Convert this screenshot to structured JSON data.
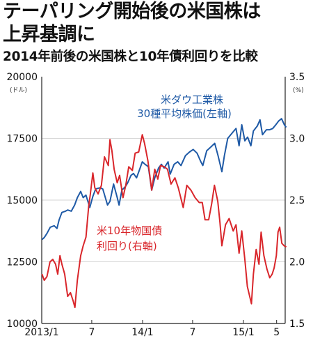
{
  "headline": {
    "line1": "テーパリング開始後の米国株は",
    "line2": "上昇基調に"
  },
  "subtitle": "2014年前後の米国株と10年債利回りを比較",
  "colors": {
    "stock": "#1f5aa6",
    "yield": "#d9262b",
    "axis": "#222222",
    "grid": "#c9c9c9"
  },
  "chart_data": {
    "type": "line",
    "title": "2014年前後の米国株と10年債利回りを比較",
    "x_range": [
      "2013-01",
      "2015-06"
    ],
    "x_ticks": [
      {
        "label": "2013/1",
        "date": "2013-01"
      },
      {
        "label": "7",
        "date": "2013-07"
      },
      {
        "label": "14/1",
        "date": "2014-01"
      },
      {
        "label": "7",
        "date": "2014-07"
      },
      {
        "label": "15/1",
        "date": "2015-01"
      },
      {
        "label": "5",
        "date": "2015-05"
      }
    ],
    "left_axis": {
      "unit": "(ドル)",
      "range": [
        10000,
        20000
      ],
      "ticks": [
        "10000",
        "12500",
        "15000",
        "17500",
        "20000"
      ]
    },
    "right_axis": {
      "unit": "(%)",
      "range": [
        1.5,
        3.5
      ],
      "ticks": [
        "1.5",
        "2.0",
        "2.5",
        "3.0",
        "3.5"
      ]
    },
    "grid": "horizontal",
    "series": [
      {
        "name": "米ダウ工業株 30種平均株価(左軸)",
        "label_line1": "米ダウ工業株",
        "label_line2": "30種平均株価(左軸)",
        "axis": "left",
        "points": [
          [
            "2013-01-02",
            13400
          ],
          [
            "2013-01-10",
            13480
          ],
          [
            "2013-01-20",
            13650
          ],
          [
            "2013-02-01",
            13900
          ],
          [
            "2013-02-15",
            13960
          ],
          [
            "2013-02-25",
            13850
          ],
          [
            "2013-03-05",
            14200
          ],
          [
            "2013-03-15",
            14500
          ],
          [
            "2013-03-28",
            14550
          ],
          [
            "2013-04-05",
            14600
          ],
          [
            "2013-04-18",
            14550
          ],
          [
            "2013-04-30",
            14800
          ],
          [
            "2013-05-10",
            15100
          ],
          [
            "2013-05-22",
            15350
          ],
          [
            "2013-05-31",
            15100
          ],
          [
            "2013-06-10",
            15200
          ],
          [
            "2013-06-24",
            14700
          ],
          [
            "2013-07-05",
            15150
          ],
          [
            "2013-07-15",
            15450
          ],
          [
            "2013-07-31",
            15500
          ],
          [
            "2013-08-10",
            15450
          ],
          [
            "2013-08-27",
            14800
          ],
          [
            "2013-09-05",
            14950
          ],
          [
            "2013-09-18",
            15650
          ],
          [
            "2013-09-30",
            15150
          ],
          [
            "2013-10-08",
            14800
          ],
          [
            "2013-10-18",
            15400
          ],
          [
            "2013-10-31",
            15550
          ],
          [
            "2013-11-08",
            15700
          ],
          [
            "2013-11-20",
            16000
          ],
          [
            "2013-11-29",
            16080
          ],
          [
            "2013-12-10",
            15900
          ],
          [
            "2013-12-20",
            16200
          ],
          [
            "2013-12-31",
            16550
          ],
          [
            "2014-01-10",
            16450
          ],
          [
            "2014-01-22",
            16350
          ],
          [
            "2014-02-03",
            15400
          ],
          [
            "2014-02-14",
            15900
          ],
          [
            "2014-02-28",
            16300
          ],
          [
            "2014-03-10",
            16450
          ],
          [
            "2014-03-20",
            16300
          ],
          [
            "2014-04-03",
            16550
          ],
          [
            "2014-04-11",
            16050
          ],
          [
            "2014-04-25",
            16450
          ],
          [
            "2014-05-08",
            16550
          ],
          [
            "2014-05-20",
            16400
          ],
          [
            "2014-06-05",
            16800
          ],
          [
            "2014-06-20",
            16950
          ],
          [
            "2014-07-03",
            17050
          ],
          [
            "2014-07-17",
            16900
          ],
          [
            "2014-07-31",
            16550
          ],
          [
            "2014-08-07",
            16400
          ],
          [
            "2014-08-21",
            17000
          ],
          [
            "2014-09-05",
            17150
          ],
          [
            "2014-09-19",
            17300
          ],
          [
            "2014-10-01",
            16800
          ],
          [
            "2014-10-15",
            16150
          ],
          [
            "2014-10-24",
            16800
          ],
          [
            "2014-11-05",
            17500
          ],
          [
            "2014-11-20",
            17700
          ],
          [
            "2014-12-05",
            17900
          ],
          [
            "2014-12-16",
            17200
          ],
          [
            "2014-12-26",
            18050
          ],
          [
            "2015-01-06",
            17400
          ],
          [
            "2015-01-16",
            17550
          ],
          [
            "2015-01-28",
            17200
          ],
          [
            "2015-02-06",
            17800
          ],
          [
            "2015-02-20",
            18000
          ],
          [
            "2015-03-02",
            18250
          ],
          [
            "2015-03-11",
            17650
          ],
          [
            "2015-03-25",
            17850
          ],
          [
            "2015-04-06",
            17850
          ],
          [
            "2015-04-17",
            17900
          ],
          [
            "2015-04-28",
            18050
          ],
          [
            "2015-05-08",
            18200
          ],
          [
            "2015-05-19",
            18300
          ],
          [
            "2015-05-29",
            18050
          ],
          [
            "2015-06-05",
            17950
          ]
        ]
      },
      {
        "name": "米10年物国債 利回り(右軸)",
        "label_line1": "米10年物国債",
        "label_line2": "利回り(右軸)",
        "axis": "right",
        "points": [
          [
            "2013-01-02",
            1.9
          ],
          [
            "2013-01-10",
            1.85
          ],
          [
            "2013-01-20",
            1.88
          ],
          [
            "2013-01-31",
            2.0
          ],
          [
            "2013-02-10",
            2.02
          ],
          [
            "2013-02-20",
            1.98
          ],
          [
            "2013-02-28",
            1.9
          ],
          [
            "2013-03-08",
            2.05
          ],
          [
            "2013-03-15",
            1.98
          ],
          [
            "2013-03-25",
            1.9
          ],
          [
            "2013-04-05",
            1.72
          ],
          [
            "2013-04-15",
            1.75
          ],
          [
            "2013-04-25",
            1.68
          ],
          [
            "2013-05-01",
            1.63
          ],
          [
            "2013-05-10",
            1.85
          ],
          [
            "2013-05-22",
            2.05
          ],
          [
            "2013-05-31",
            2.13
          ],
          [
            "2013-06-10",
            2.2
          ],
          [
            "2013-06-20",
            2.45
          ],
          [
            "2013-06-26",
            2.55
          ],
          [
            "2013-07-05",
            2.72
          ],
          [
            "2013-07-12",
            2.6
          ],
          [
            "2013-07-24",
            2.55
          ],
          [
            "2013-08-05",
            2.62
          ],
          [
            "2013-08-16",
            2.85
          ],
          [
            "2013-08-30",
            2.78
          ],
          [
            "2013-09-05",
            2.99
          ],
          [
            "2013-09-12",
            2.9
          ],
          [
            "2013-09-20",
            2.75
          ],
          [
            "2013-10-01",
            2.64
          ],
          [
            "2013-10-10",
            2.7
          ],
          [
            "2013-10-22",
            2.52
          ],
          [
            "2013-11-01",
            2.62
          ],
          [
            "2013-11-12",
            2.77
          ],
          [
            "2013-11-25",
            2.74
          ],
          [
            "2013-12-05",
            2.88
          ],
          [
            "2013-12-18",
            2.89
          ],
          [
            "2013-12-31",
            3.03
          ],
          [
            "2014-01-08",
            2.96
          ],
          [
            "2014-01-20",
            2.82
          ],
          [
            "2014-02-03",
            2.58
          ],
          [
            "2014-02-14",
            2.75
          ],
          [
            "2014-02-25",
            2.67
          ],
          [
            "2014-03-07",
            2.78
          ],
          [
            "2014-03-20",
            2.77
          ],
          [
            "2014-04-01",
            2.75
          ],
          [
            "2014-04-14",
            2.63
          ],
          [
            "2014-04-28",
            2.68
          ],
          [
            "2014-05-10",
            2.6
          ],
          [
            "2014-05-28",
            2.44
          ],
          [
            "2014-06-10",
            2.62
          ],
          [
            "2014-06-25",
            2.58
          ],
          [
            "2014-07-10",
            2.52
          ],
          [
            "2014-07-25",
            2.48
          ],
          [
            "2014-08-05",
            2.48
          ],
          [
            "2014-08-15",
            2.34
          ],
          [
            "2014-08-28",
            2.34
          ],
          [
            "2014-09-08",
            2.47
          ],
          [
            "2014-09-18",
            2.62
          ],
          [
            "2014-09-30",
            2.49
          ],
          [
            "2014-10-08",
            2.32
          ],
          [
            "2014-10-15",
            2.13
          ],
          [
            "2014-10-28",
            2.3
          ],
          [
            "2014-11-10",
            2.35
          ],
          [
            "2014-11-25",
            2.25
          ],
          [
            "2014-12-05",
            2.3
          ],
          [
            "2014-12-16",
            2.07
          ],
          [
            "2014-12-26",
            2.25
          ],
          [
            "2015-01-06",
            2.02
          ],
          [
            "2015-01-15",
            1.8
          ],
          [
            "2015-01-30",
            1.66
          ],
          [
            "2015-02-06",
            1.9
          ],
          [
            "2015-02-16",
            2.1
          ],
          [
            "2015-02-26",
            1.98
          ],
          [
            "2015-03-06",
            2.24
          ],
          [
            "2015-03-16",
            2.05
          ],
          [
            "2015-03-27",
            1.94
          ],
          [
            "2015-04-06",
            1.87
          ],
          [
            "2015-04-15",
            1.9
          ],
          [
            "2015-04-22",
            1.95
          ],
          [
            "2015-04-30",
            2.05
          ],
          [
            "2015-05-06",
            2.24
          ],
          [
            "2015-05-12",
            2.28
          ],
          [
            "2015-05-20",
            2.15
          ],
          [
            "2015-05-28",
            2.13
          ],
          [
            "2015-06-05",
            2.12
          ]
        ]
      }
    ]
  }
}
